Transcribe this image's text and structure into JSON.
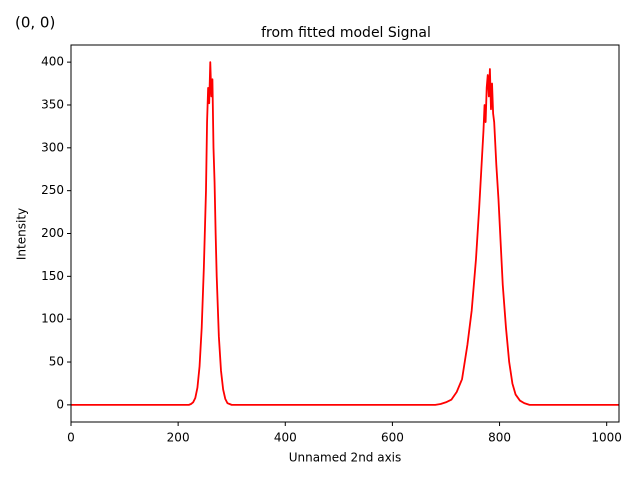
{
  "chart_data": {
    "type": "line",
    "title": "from fitted model Signal",
    "annotation": "(0, 0)",
    "xlabel": "Unnamed 2nd axis",
    "ylabel": "Intensity",
    "color": "#ff0000",
    "annotation_color": "#ff0000",
    "x": [
      0,
      220,
      224,
      228,
      232,
      236,
      240,
      244,
      248,
      252,
      254,
      256,
      258,
      260,
      262,
      264,
      266,
      268,
      270,
      272,
      276,
      280,
      284,
      288,
      292,
      296,
      300,
      500,
      680,
      690,
      700,
      710,
      720,
      730,
      740,
      748,
      756,
      762,
      766,
      770,
      772,
      774,
      776,
      778,
      780,
      782,
      784,
      786,
      788,
      790,
      794,
      798,
      802,
      806,
      812,
      818,
      824,
      830,
      838,
      846,
      856,
      1023
    ],
    "values": [
      0,
      0,
      1,
      3,
      8,
      20,
      45,
      90,
      160,
      250,
      330,
      370,
      352,
      400,
      360,
      380,
      300,
      260,
      200,
      150,
      80,
      40,
      18,
      7,
      2,
      1,
      0,
      0,
      0,
      1,
      3,
      6,
      15,
      30,
      70,
      110,
      170,
      230,
      275,
      320,
      350,
      330,
      370,
      385,
      360,
      392,
      345,
      375,
      340,
      330,
      280,
      240,
      190,
      140,
      90,
      50,
      25,
      12,
      5,
      2,
      0,
      0
    ],
    "xlim": [
      0,
      1023
    ],
    "xticks": [
      0,
      200,
      400,
      600,
      800,
      1000
    ],
    "ylim": [
      -20,
      420
    ],
    "yticks": [
      0,
      50,
      100,
      150,
      200,
      250,
      300,
      350,
      400
    ]
  }
}
